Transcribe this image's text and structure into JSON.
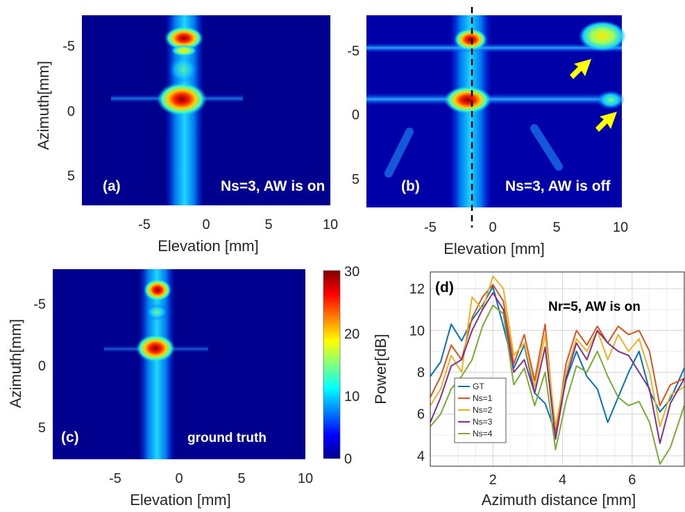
{
  "chart_data": [
    {
      "type": "heatmap",
      "panel_label": "(a)",
      "annotation": "Ns=3, AW is on",
      "xlabel": "Elevation  [mm]",
      "ylabel": "Azimuth[mm]",
      "xlim": [
        -10,
        10
      ],
      "ylim": [
        -7.5,
        7.5
      ],
      "xticks": [
        "-5",
        "0",
        "5",
        "10"
      ],
      "yticks": [
        "-5",
        "0",
        "5"
      ],
      "hotspots": [
        {
          "elevation": -2,
          "azimuth": -5.7,
          "intensity": 28
        },
        {
          "elevation": -2,
          "azimuth": -1.2,
          "intensity": 30
        },
        {
          "elevation": -2,
          "azimuth": -5.0,
          "intensity": 14
        }
      ]
    },
    {
      "type": "heatmap",
      "panel_label": "(b)",
      "annotation": "Ns=3, AW is off",
      "xlabel": "Elevation  [mm]",
      "ylabel": "",
      "xlim": [
        -10,
        10
      ],
      "ylim": [
        -7.5,
        7.5
      ],
      "xticks": [
        "-5",
        "0",
        "5",
        "10"
      ],
      "yticks": [
        "-5",
        "0",
        "5"
      ],
      "dashed_line_elevation": -1.5,
      "hotspots": [
        {
          "elevation": -1.5,
          "azimuth": -5.7,
          "intensity": 30
        },
        {
          "elevation": -2,
          "azimuth": -1.0,
          "intensity": 30
        },
        {
          "elevation": 9,
          "azimuth": -6.0,
          "intensity": 20
        },
        {
          "elevation": 9.5,
          "azimuth": -1.2,
          "intensity": 12
        }
      ],
      "arrows": [
        {
          "elevation": 7.5,
          "azimuth": -3.8
        },
        {
          "elevation": 8.8,
          "azimuth": 0.7
        }
      ]
    },
    {
      "type": "heatmap",
      "panel_label": "(c)",
      "annotation": "ground truth",
      "xlabel": "Elevation  [mm]",
      "ylabel": "Azimuth[mm]",
      "xlim": [
        -10,
        10
      ],
      "ylim": [
        -7.5,
        7.5
      ],
      "xticks": [
        "-5",
        "0",
        "5",
        "10"
      ],
      "yticks": [
        "-5",
        "0",
        "5"
      ],
      "colorbar": {
        "min": 0,
        "max": 30,
        "ticks": [
          "0",
          "10",
          "20",
          "30"
        ]
      },
      "hotspots": [
        {
          "elevation": -1.5,
          "azimuth": -5.9,
          "intensity": 30
        },
        {
          "elevation": -2,
          "azimuth": -1.2,
          "intensity": 30
        },
        {
          "elevation": -2,
          "azimuth": -4.0,
          "intensity": 12
        }
      ]
    },
    {
      "type": "line",
      "panel_label": "(d)",
      "annotation": "Nr=5, AW is on",
      "xlabel": "Azimuth distance [mm]",
      "ylabel": "Power[dB]",
      "xlim": [
        0.2,
        7.5
      ],
      "ylim": [
        3.5,
        12.8
      ],
      "xticks": [
        "2",
        "4",
        "6"
      ],
      "yticks": [
        "4",
        "6",
        "8",
        "10",
        "12"
      ],
      "grid": true,
      "legend_position": "lower-left",
      "x": [
        0.2,
        0.5,
        0.8,
        1.1,
        1.4,
        1.7,
        2.0,
        2.3,
        2.6,
        2.9,
        3.2,
        3.5,
        3.8,
        4.1,
        4.4,
        4.7,
        5.0,
        5.3,
        5.6,
        5.9,
        6.2,
        6.5,
        6.8,
        7.1,
        7.5
      ],
      "series": [
        {
          "name": "GT",
          "color": "#0072BD",
          "values": [
            7.8,
            8.5,
            10.3,
            9.5,
            10.5,
            11.2,
            12.1,
            10.2,
            8.2,
            9.3,
            7.0,
            6.5,
            5.1,
            7.6,
            9.0,
            7.8,
            7.2,
            5.6,
            6.8,
            8.0,
            9.0,
            7.1,
            6.1,
            6.7,
            8.2
          ]
        },
        {
          "name": "Ns=1",
          "color": "#D95319",
          "values": [
            6.8,
            7.8,
            9.3,
            8.6,
            10.6,
            11.6,
            12.2,
            11.4,
            8.4,
            9.8,
            7.6,
            10.3,
            5.0,
            8.4,
            10.0,
            9.3,
            10.2,
            9.4,
            10.2,
            9.8,
            10.0,
            9.0,
            6.4,
            7.4,
            7.7
          ]
        },
        {
          "name": "Ns=2",
          "color": "#EDB120",
          "values": [
            6.4,
            7.2,
            8.8,
            8.0,
            11.6,
            11.0,
            12.6,
            12.0,
            8.8,
            9.4,
            7.3,
            9.8,
            5.4,
            8.0,
            9.6,
            9.0,
            10.0,
            8.6,
            9.8,
            9.0,
            9.6,
            8.0,
            5.4,
            6.9,
            7.3
          ]
        },
        {
          "name": "Ns=3",
          "color": "#7E2F8E",
          "values": [
            5.6,
            6.8,
            8.3,
            8.6,
            10.0,
            11.0,
            11.8,
            11.0,
            8.0,
            8.6,
            7.0,
            9.2,
            4.8,
            7.7,
            9.4,
            8.6,
            10.0,
            9.4,
            9.0,
            8.8,
            8.0,
            7.2,
            4.6,
            6.5,
            7.7
          ]
        },
        {
          "name": "Ns=4",
          "color": "#77AC30",
          "values": [
            5.4,
            6.0,
            7.2,
            7.8,
            8.6,
            10.2,
            11.2,
            10.8,
            7.4,
            8.2,
            6.4,
            8.0,
            4.3,
            6.6,
            8.3,
            8.0,
            9.0,
            7.8,
            6.8,
            6.4,
            6.6,
            5.6,
            3.6,
            4.4,
            6.4
          ]
        }
      ]
    }
  ]
}
